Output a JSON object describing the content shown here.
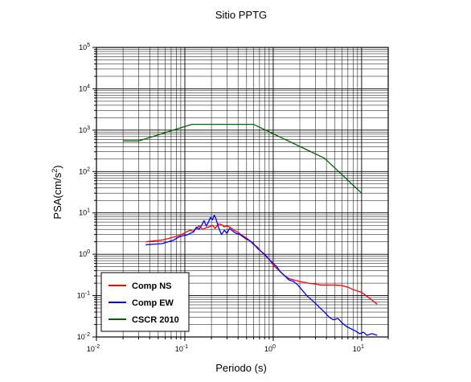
{
  "chart_data": {
    "type": "line",
    "title": "Sitio PPTG",
    "xlabel": "Periodo (s)",
    "ylabel_base": "PSA(cm/s",
    "ylabel_exp": "2",
    "ylabel_close": ")",
    "x_scale": "log",
    "y_scale": "log",
    "xlim": [
      0.01,
      20
    ],
    "ylim": [
      0.01,
      100000
    ],
    "grid": true,
    "legend_position": "bottom-left",
    "x_ticks": [
      {
        "base": "10",
        "exp": "-2",
        "value": 0.01
      },
      {
        "base": "10",
        "exp": "-1",
        "value": 0.1
      },
      {
        "base": "10",
        "exp": "0",
        "value": 1
      },
      {
        "base": "10",
        "exp": "1",
        "value": 10
      }
    ],
    "y_ticks": [
      {
        "base": "10",
        "exp": "-2",
        "value": 0.01
      },
      {
        "base": "10",
        "exp": "-1",
        "value": 0.1
      },
      {
        "base": "10",
        "exp": "0",
        "value": 1
      },
      {
        "base": "10",
        "exp": "1",
        "value": 10
      },
      {
        "base": "10",
        "exp": "2",
        "value": 100
      },
      {
        "base": "10",
        "exp": "3",
        "value": 1000
      },
      {
        "base": "10",
        "exp": "4",
        "value": 10000
      },
      {
        "base": "10",
        "exp": "5",
        "value": 100000
      }
    ],
    "series": [
      {
        "name": "Comp NS",
        "color": "#ff0000",
        "x": [
          0.036,
          0.045,
          0.055,
          0.065,
          0.075,
          0.085,
          0.095,
          0.105,
          0.115,
          0.125,
          0.135,
          0.145,
          0.16,
          0.175,
          0.19,
          0.205,
          0.22,
          0.24,
          0.26,
          0.28,
          0.3,
          0.33,
          0.36,
          0.4,
          0.44,
          0.48,
          0.52,
          0.56,
          0.6,
          0.66,
          0.72,
          0.8,
          0.9,
          1.0,
          1.1,
          1.2,
          1.35,
          1.5,
          1.7,
          2.0,
          2.5,
          3.0,
          3.5,
          4.0,
          5.0,
          6.0,
          7.0,
          8.0,
          10.0,
          12.0,
          15.0
        ],
        "y": [
          2.0,
          2.1,
          2.2,
          2.4,
          2.6,
          2.8,
          3.1,
          3.5,
          3.8,
          3.6,
          4.2,
          4.8,
          4.0,
          4.4,
          4.6,
          5.0,
          4.2,
          5.4,
          5.2,
          4.6,
          4.9,
          4.4,
          3.8,
          3.4,
          2.9,
          2.6,
          2.3,
          2.0,
          1.7,
          1.5,
          1.2,
          0.95,
          0.75,
          0.55,
          0.45,
          0.38,
          0.3,
          0.26,
          0.24,
          0.22,
          0.2,
          0.19,
          0.18,
          0.18,
          0.18,
          0.175,
          0.16,
          0.14,
          0.12,
          0.09,
          0.062
        ]
      },
      {
        "name": "Comp EW",
        "color": "#0000ff",
        "x": [
          0.036,
          0.045,
          0.055,
          0.065,
          0.075,
          0.085,
          0.095,
          0.105,
          0.115,
          0.125,
          0.135,
          0.145,
          0.155,
          0.165,
          0.175,
          0.185,
          0.195,
          0.205,
          0.215,
          0.225,
          0.24,
          0.26,
          0.28,
          0.3,
          0.32,
          0.35,
          0.38,
          0.42,
          0.46,
          0.5,
          0.55,
          0.6,
          0.66,
          0.72,
          0.8,
          0.9,
          1.0,
          1.1,
          1.2,
          1.35,
          1.5,
          1.7,
          1.9,
          2.1,
          2.4,
          2.7,
          3.0,
          3.4,
          3.8,
          4.3,
          4.8,
          5.4,
          6.0,
          6.7,
          7.5,
          8.5,
          9.5,
          10.5,
          11.5,
          13.0,
          15.0
        ],
        "y": [
          1.7,
          1.75,
          1.8,
          2.0,
          2.2,
          2.6,
          2.8,
          2.9,
          3.2,
          3.4,
          4.5,
          4.0,
          5.0,
          6.5,
          4.8,
          6.0,
          7.8,
          6.8,
          8.8,
          7.2,
          4.5,
          3.0,
          3.8,
          3.2,
          4.2,
          3.6,
          3.2,
          3.0,
          2.6,
          2.3,
          2.1,
          1.8,
          1.4,
          1.2,
          1.0,
          0.75,
          0.6,
          0.5,
          0.38,
          0.3,
          0.24,
          0.22,
          0.18,
          0.14,
          0.1,
          0.08,
          0.065,
          0.05,
          0.04,
          0.03,
          0.026,
          0.028,
          0.022,
          0.018,
          0.016,
          0.014,
          0.012,
          0.013,
          0.011,
          0.012,
          0.011
        ]
      },
      {
        "name": "CSCR 2010",
        "color": "#006400",
        "x": [
          0.02,
          0.03,
          0.12,
          0.6,
          3.8,
          10.0
        ],
        "y": [
          550,
          550,
          1380,
          1380,
          210,
          30
        ]
      }
    ]
  }
}
